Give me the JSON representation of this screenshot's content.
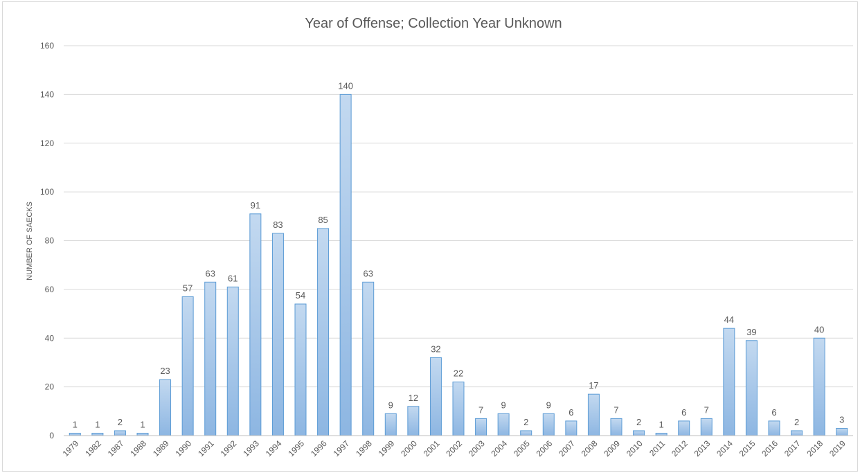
{
  "chart_data": {
    "type": "bar",
    "title": "Year of Offense; Collection Year Unknown",
    "xlabel": "",
    "ylabel": "NUMBER OF SAECKS",
    "ylim": [
      0,
      160
    ],
    "yticks": [
      0,
      20,
      40,
      60,
      80,
      100,
      120,
      140,
      160
    ],
    "grid": true,
    "legend": "none",
    "bar_color": "#9dc3e6",
    "categories": [
      "1979",
      "1982",
      "1987",
      "1988",
      "1989",
      "1990",
      "1991",
      "1992",
      "1993",
      "1994",
      "1995",
      "1996",
      "1997",
      "1998",
      "1999",
      "2000",
      "2001",
      "2002",
      "2003",
      "2004",
      "2005",
      "2006",
      "2007",
      "2008",
      "2009",
      "2010",
      "2011",
      "2012",
      "2013",
      "2014",
      "2015",
      "2016",
      "2017",
      "2018",
      "2019"
    ],
    "values": [
      1,
      1,
      2,
      1,
      23,
      57,
      63,
      61,
      91,
      83,
      54,
      85,
      140,
      63,
      9,
      12,
      32,
      22,
      7,
      9,
      2,
      9,
      6,
      17,
      7,
      2,
      1,
      6,
      7,
      44,
      39,
      6,
      2,
      40,
      3
    ]
  }
}
